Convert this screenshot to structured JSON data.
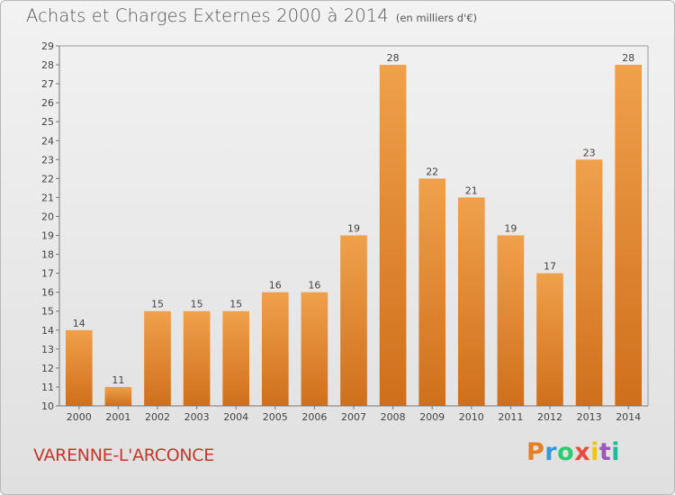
{
  "title": "Achats et Charges Externes 2000 à 2014",
  "unit_note": "(en milliers d'€)",
  "location": "VARENNE-L'ARCONCE",
  "brand": {
    "letters": [
      "P",
      "r",
      "o",
      "x",
      "i",
      "t",
      "i"
    ],
    "colors": [
      "#e67e22",
      "#3498db",
      "#2ecc71",
      "#e74c3c",
      "#f1c40f",
      "#9b59b6",
      "#1abc9c"
    ]
  },
  "chart_data": {
    "type": "bar",
    "categories": [
      "2000",
      "2001",
      "2002",
      "2003",
      "2004",
      "2005",
      "2006",
      "2007",
      "2008",
      "2009",
      "2010",
      "2011",
      "2012",
      "2013",
      "2014"
    ],
    "values": [
      14,
      11,
      15,
      15,
      15,
      16,
      16,
      19,
      28,
      22,
      21,
      19,
      17,
      23,
      28
    ],
    "title": "Achats et Charges Externes 2000 à 2014",
    "xlabel": "",
    "ylabel": "",
    "ylim": [
      10,
      29
    ],
    "yticks": [
      10,
      11,
      12,
      13,
      14,
      15,
      16,
      17,
      18,
      19,
      20,
      21,
      22,
      23,
      24,
      25,
      26,
      27,
      28,
      29
    ],
    "grid": false,
    "bar_color": "#f0a04b",
    "bar_color_dark": "#cf6f1c"
  }
}
